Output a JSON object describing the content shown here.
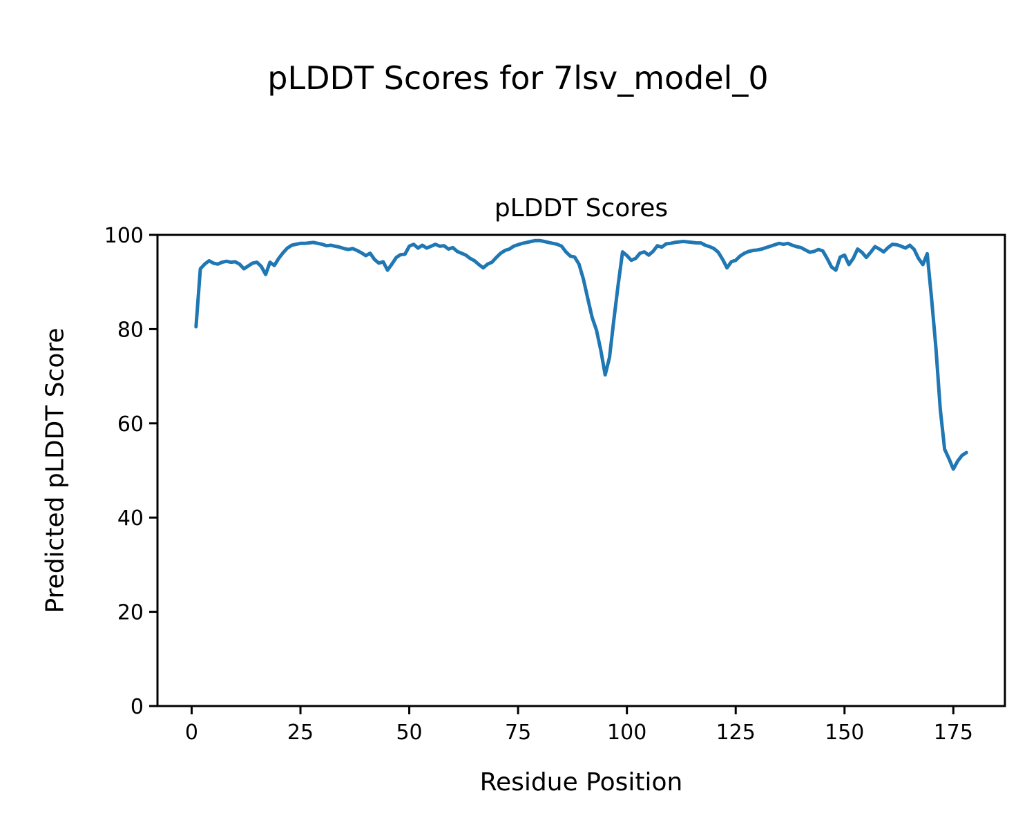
{
  "figure": {
    "title": "pLDDT Scores for 7lsv_model_0"
  },
  "chart_data": {
    "type": "line",
    "title": "pLDDT Scores for 7lsv_model_0",
    "axes_title": "pLDDT Scores",
    "xlabel": "Residue Position",
    "ylabel": "Predicted pLDDT Score",
    "legend": "none",
    "grid": false,
    "line_color": "#1f77b4",
    "line_width": 5,
    "xlim": [
      -7.85,
      186.85
    ],
    "ylim": [
      0,
      100
    ],
    "xticks": [
      0,
      25,
      50,
      75,
      100,
      125,
      150,
      175
    ],
    "yticks": [
      0,
      20,
      40,
      60,
      80,
      100
    ],
    "x_start": 1,
    "x_step": 1,
    "series": [
      {
        "name": "pLDDT",
        "values": [
          80.5,
          92.8,
          93.8,
          94.5,
          94.0,
          93.8,
          94.2,
          94.4,
          94.2,
          94.3,
          93.8,
          92.8,
          93.4,
          94.0,
          94.2,
          93.3,
          91.6,
          94.2,
          93.5,
          95.0,
          96.2,
          97.2,
          97.8,
          98.0,
          98.2,
          98.2,
          98.3,
          98.4,
          98.2,
          98.0,
          97.7,
          97.8,
          97.6,
          97.4,
          97.1,
          96.9,
          97.1,
          96.7,
          96.2,
          95.6,
          96.1,
          94.8,
          94.0,
          94.3,
          92.5,
          93.8,
          95.2,
          95.8,
          95.9,
          97.6,
          98.0,
          97.2,
          97.8,
          97.2,
          97.6,
          98.0,
          97.6,
          97.7,
          97.0,
          97.3,
          96.5,
          96.1,
          95.7,
          95.0,
          94.5,
          93.7,
          93.0,
          93.8,
          94.2,
          95.2,
          96.1,
          96.7,
          97.0,
          97.6,
          97.9,
          98.2,
          98.4,
          98.6,
          98.8,
          98.8,
          98.6,
          98.4,
          98.2,
          98.0,
          97.6,
          96.4,
          95.5,
          95.3,
          93.8,
          90.6,
          86.5,
          82.5,
          79.8,
          75.5,
          70.3,
          74.0,
          82.0,
          89.5,
          96.4,
          95.6,
          94.6,
          95.0,
          96.1,
          96.4,
          95.7,
          96.5,
          97.7,
          97.4,
          98.1,
          98.2,
          98.4,
          98.5,
          98.6,
          98.5,
          98.4,
          98.3,
          98.3,
          97.8,
          97.5,
          97.1,
          96.3,
          94.8,
          93.0,
          94.3,
          94.6,
          95.5,
          96.1,
          96.5,
          96.7,
          96.8,
          97.0,
          97.3,
          97.6,
          97.9,
          98.2,
          98.0,
          98.2,
          97.8,
          97.5,
          97.3,
          96.8,
          96.3,
          96.5,
          96.9,
          96.6,
          95.0,
          93.2,
          92.5,
          95.3,
          95.7,
          93.7,
          95.0,
          97.0,
          96.3,
          95.2,
          96.3,
          97.5,
          97.0,
          96.4,
          97.3,
          98.0,
          97.9,
          97.6,
          97.2,
          97.8,
          96.9,
          95.0,
          93.7,
          96.0,
          86.5,
          76.0,
          63.0,
          54.5,
          52.5,
          50.3,
          52.0,
          53.2,
          53.8
        ]
      }
    ]
  }
}
